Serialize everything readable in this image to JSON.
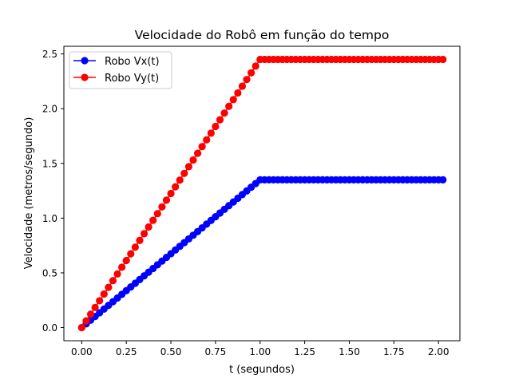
{
  "chart_data": {
    "type": "line",
    "title": "Velocidade do Robô em função do tempo",
    "xlabel": "t (segundos)",
    "ylabel": "Velocidade (metros/segundo)",
    "xlim": [
      -0.1,
      2.12
    ],
    "ylim": [
      -0.12,
      2.57
    ],
    "xticks": [
      0.0,
      0.25,
      0.5,
      0.75,
      1.0,
      1.25,
      1.5,
      1.75,
      2.0
    ],
    "xtick_labels": [
      "0.00",
      "0.25",
      "0.50",
      "0.75",
      "1.00",
      "1.25",
      "1.50",
      "1.75",
      "2.00"
    ],
    "yticks": [
      0.0,
      0.5,
      1.0,
      1.5,
      2.0,
      2.5
    ],
    "ytick_labels": [
      "0.0",
      "0.5",
      "1.0",
      "1.5",
      "2.0",
      "2.5"
    ],
    "grid": false,
    "legend_position": "top-left",
    "sampling": {
      "x_start": 0.0,
      "x_step": 0.025,
      "count": 82
    },
    "series": [
      {
        "name": "Robo Vx(t)",
        "color": "#0000ff",
        "marker": "circle",
        "ramp_end_x": 1.0,
        "plateau_value": 1.35
      },
      {
        "name": "Robo Vy(t)",
        "color": "#ff0000",
        "marker": "circle",
        "ramp_end_x": 1.0,
        "plateau_value": 2.45
      }
    ]
  }
}
